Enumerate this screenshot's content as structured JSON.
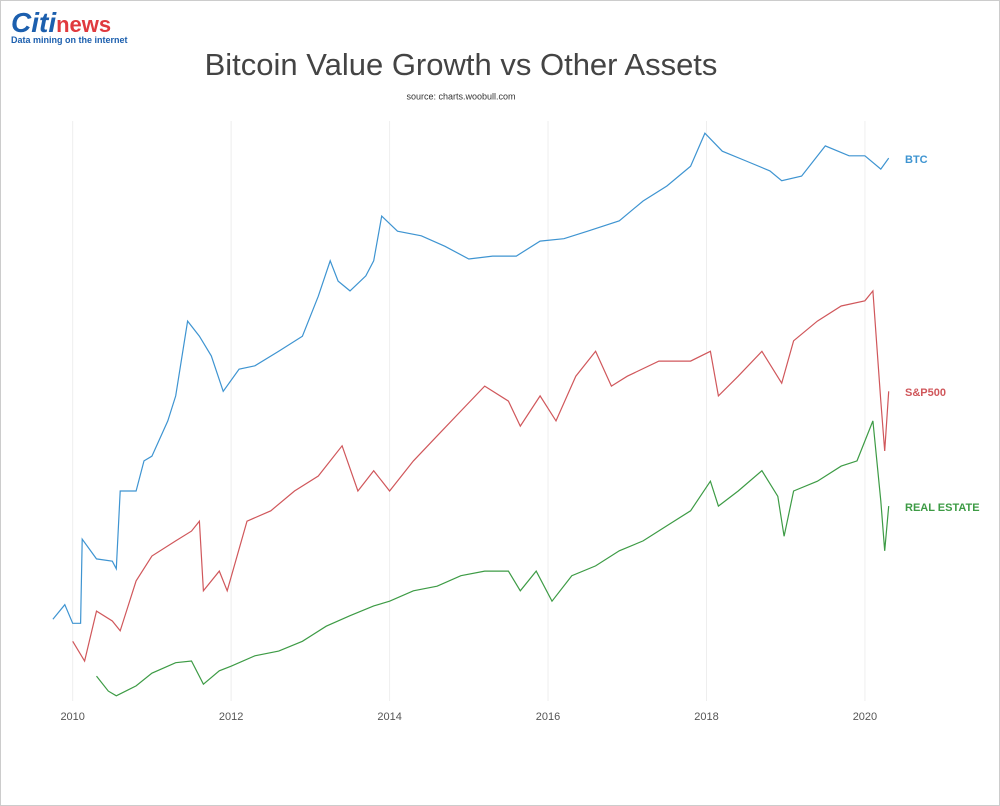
{
  "logo": {
    "brand_a": "Citi",
    "brand_b": "news",
    "tagline": "Data mining on the internet"
  },
  "chart_data": {
    "type": "line",
    "title": "Bitcoin Value Growth vs Other Assets",
    "subtitle": "source: charts.woobull.com",
    "xlim": [
      2009.6,
      2021.2
    ],
    "xticks": [
      2010,
      2012,
      2014,
      2016,
      2018,
      2020
    ],
    "ylim": [
      0,
      100
    ],
    "grid": true,
    "series": [
      {
        "name": "BTC",
        "color": "#3e94d1",
        "x": [
          2009.75,
          2009.9,
          2010.0,
          2010.1,
          2010.12,
          2010.3,
          2010.5,
          2010.55,
          2010.6,
          2010.8,
          2010.9,
          2011.0,
          2011.2,
          2011.3,
          2011.45,
          2011.6,
          2011.75,
          2011.9,
          2012.1,
          2012.3,
          2012.6,
          2012.9,
          2013.1,
          2013.25,
          2013.35,
          2013.5,
          2013.7,
          2013.8,
          2013.9,
          2014.1,
          2014.4,
          2014.7,
          2015.0,
          2015.3,
          2015.6,
          2015.9,
          2016.2,
          2016.5,
          2016.9,
          2017.2,
          2017.5,
          2017.8,
          2017.98,
          2018.2,
          2018.5,
          2018.8,
          2018.95,
          2019.2,
          2019.5,
          2019.8,
          2020.0,
          2020.2,
          2020.3
        ],
        "values": [
          14.1,
          16.6,
          13.4,
          13.4,
          27.9,
          24.5,
          24.1,
          22.8,
          36.2,
          36.2,
          41.4,
          42.2,
          48.3,
          52.6,
          65.5,
          62.9,
          59.5,
          53.4,
          57.2,
          57.8,
          60.3,
          62.9,
          69.8,
          75.9,
          72.4,
          70.7,
          73.3,
          75.9,
          83.6,
          81.0,
          80.2,
          78.4,
          76.2,
          76.7,
          76.7,
          79.3,
          79.7,
          81.0,
          82.8,
          86.2,
          88.8,
          92.2,
          97.9,
          94.8,
          93.1,
          91.4,
          89.7,
          90.5,
          95.7,
          94.0,
          94.0,
          91.7,
          93.6
        ]
      },
      {
        "name": "S&P500",
        "color": "#d0575b",
        "x": [
          2010.0,
          2010.15,
          2010.3,
          2010.5,
          2010.6,
          2010.8,
          2011.0,
          2011.3,
          2011.5,
          2011.6,
          2011.65,
          2011.85,
          2011.95,
          2012.2,
          2012.5,
          2012.8,
          2013.1,
          2013.4,
          2013.6,
          2013.8,
          2014.0,
          2014.3,
          2014.6,
          2014.9,
          2015.2,
          2015.5,
          2015.65,
          2015.9,
          2016.1,
          2016.35,
          2016.6,
          2016.8,
          2017.0,
          2017.4,
          2017.8,
          2018.05,
          2018.15,
          2018.4,
          2018.7,
          2018.95,
          2019.1,
          2019.4,
          2019.7,
          2020.0,
          2020.1,
          2020.2,
          2020.25,
          2020.3
        ],
        "values": [
          10.3,
          6.9,
          15.5,
          13.8,
          12.1,
          20.7,
          25.0,
          27.6,
          29.3,
          31.0,
          19.0,
          22.4,
          19.0,
          31.0,
          32.8,
          36.2,
          38.8,
          44.0,
          36.2,
          39.7,
          36.2,
          41.4,
          45.7,
          50.0,
          54.3,
          51.7,
          47.4,
          52.6,
          48.3,
          56.0,
          60.3,
          54.3,
          56.0,
          58.6,
          58.6,
          60.3,
          52.6,
          56.0,
          60.3,
          54.8,
          62.1,
          65.5,
          68.1,
          69.0,
          70.7,
          51.7,
          43.1,
          53.4
        ]
      },
      {
        "name": "REAL ESTATE",
        "color": "#3d9b45",
        "x": [
          2010.3,
          2010.45,
          2010.55,
          2010.8,
          2011.0,
          2011.3,
          2011.5,
          2011.65,
          2011.85,
          2012.0,
          2012.3,
          2012.6,
          2012.9,
          2013.2,
          2013.5,
          2013.8,
          2014.0,
          2014.3,
          2014.6,
          2014.9,
          2015.2,
          2015.5,
          2015.65,
          2015.85,
          2016.05,
          2016.3,
          2016.6,
          2016.9,
          2017.2,
          2017.5,
          2017.8,
          2018.05,
          2018.15,
          2018.4,
          2018.7,
          2018.9,
          2018.98,
          2019.1,
          2019.4,
          2019.7,
          2019.9,
          2020.1,
          2020.2,
          2020.25,
          2020.3
        ],
        "values": [
          4.3,
          1.7,
          0.9,
          2.6,
          4.8,
          6.6,
          6.9,
          2.9,
          5.2,
          6.0,
          7.8,
          8.6,
          10.3,
          12.9,
          14.7,
          16.4,
          17.2,
          19.0,
          19.8,
          21.6,
          22.4,
          22.4,
          19.0,
          22.4,
          17.2,
          21.6,
          23.3,
          25.9,
          27.6,
          30.2,
          32.8,
          37.9,
          33.6,
          36.2,
          39.7,
          35.3,
          28.4,
          36.2,
          37.9,
          40.5,
          41.4,
          48.3,
          34.5,
          25.9,
          33.6
        ]
      }
    ]
  }
}
